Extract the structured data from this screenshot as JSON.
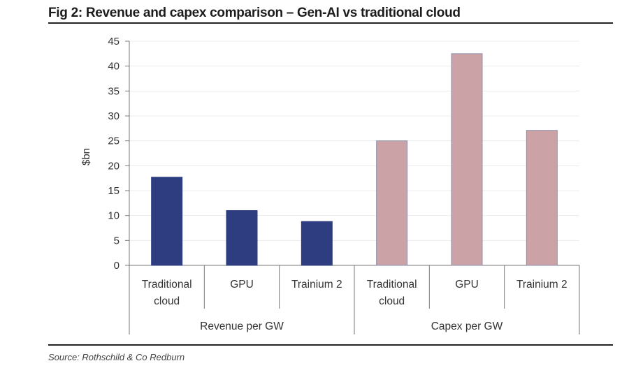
{
  "figure": {
    "title": "Fig 2: Revenue and capex comparison – Gen-AI vs traditional cloud",
    "source": "Source: Rothschild & Co Redburn"
  },
  "chart_data": {
    "type": "bar",
    "title": "Fig 2: Revenue and capex comparison – Gen-AI vs traditional cloud",
    "xlabel": "",
    "ylabel": "$bn",
    "ylim": [
      0,
      45
    ],
    "yticks": [
      0,
      5,
      10,
      15,
      20,
      25,
      30,
      35,
      40,
      45
    ],
    "grid": true,
    "legend": "none",
    "groups": [
      {
        "name": "Revenue per GW",
        "color": "#2e3d80",
        "categories": [
          [
            "Traditional",
            "cloud"
          ],
          [
            "GPU"
          ],
          [
            "Trainium 2"
          ]
        ],
        "values": [
          17.7,
          11.0,
          8.8
        ]
      },
      {
        "name": "Capex per GW",
        "color": "#cba3a6",
        "categories": [
          [
            "Traditional",
            "cloud"
          ],
          [
            "GPU"
          ],
          [
            "Trainium 2"
          ]
        ],
        "values": [
          25.0,
          42.5,
          27.1
        ]
      }
    ]
  }
}
